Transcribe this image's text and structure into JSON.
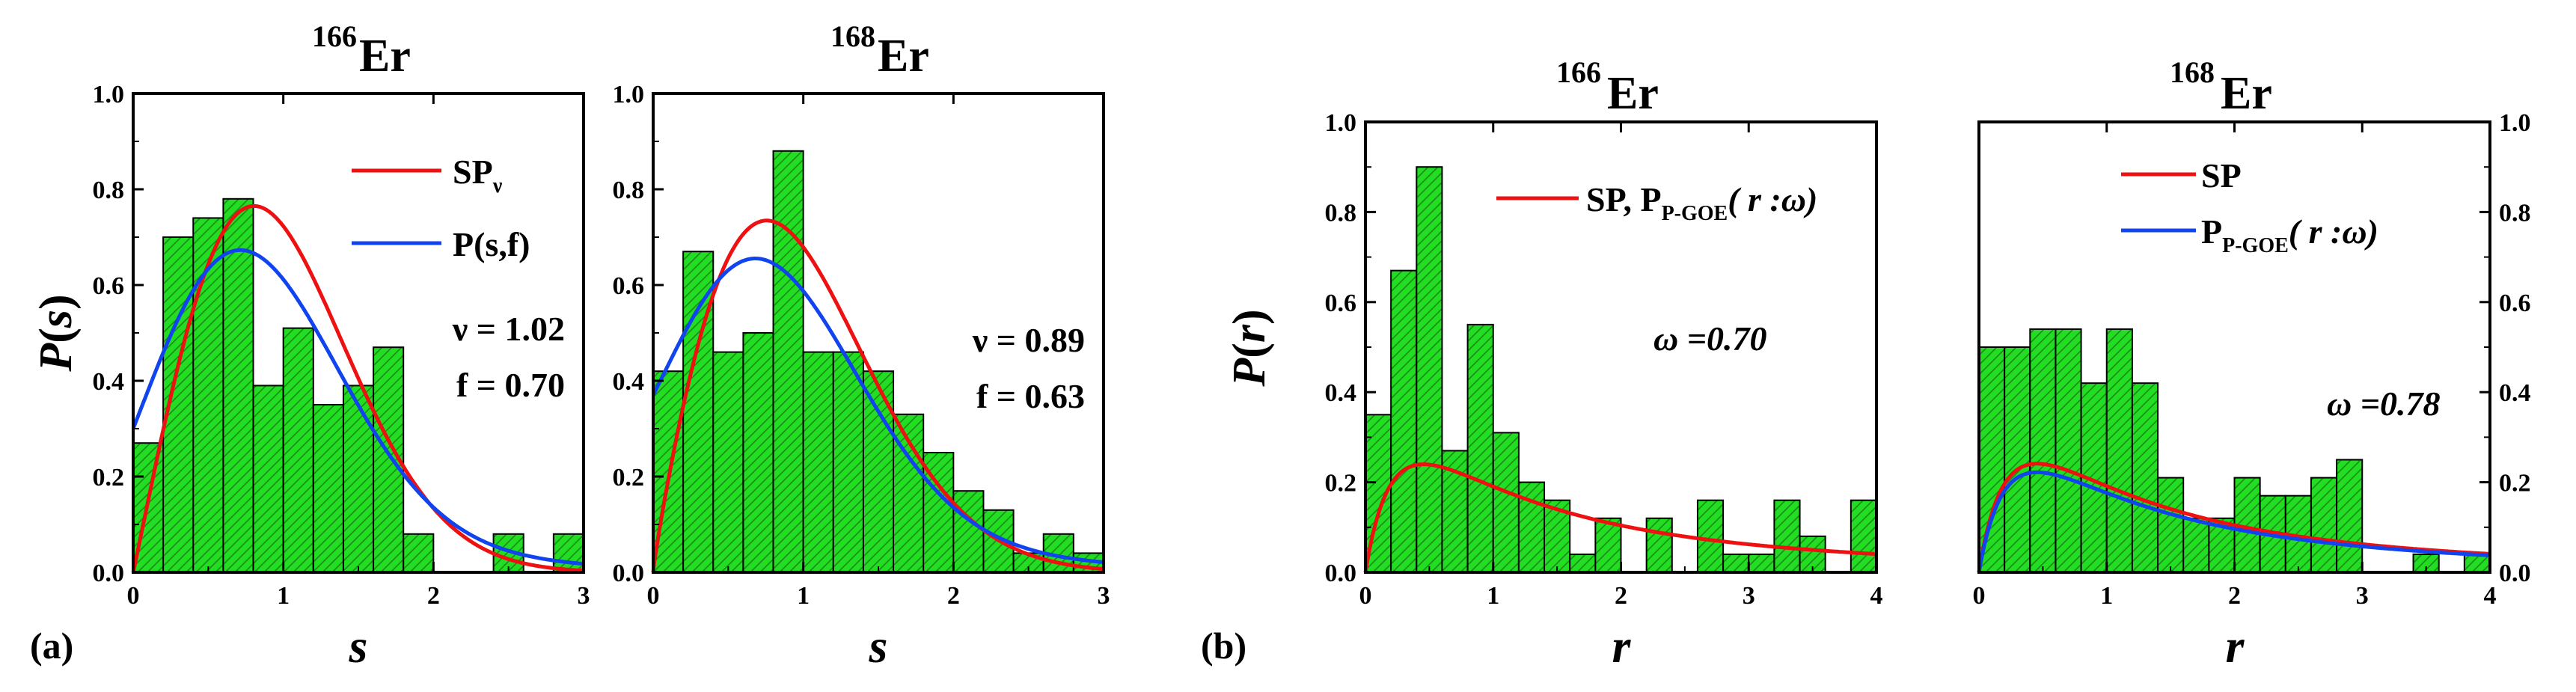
{
  "colors": {
    "hist_fill": "#22dd22",
    "hatch": "#1b8a1b",
    "red": "#ee1111",
    "blue": "#1144ee"
  },
  "panel_labels": [
    "(a)",
    "(b)"
  ],
  "chart_data": [
    {
      "type": "bar",
      "title_sup": "166",
      "title": "Er",
      "xlabel": "s",
      "ylabel": "P(s)",
      "xlim": [
        0,
        3
      ],
      "ylim": [
        0,
        1.0
      ],
      "xticks": [
        "0",
        "1",
        "2",
        "3"
      ],
      "yticks": [
        "0.0",
        "0.2",
        "0.4",
        "0.6",
        "0.8",
        "1.0"
      ],
      "bin_width": 0.2,
      "values": [
        0.27,
        0.7,
        0.74,
        0.78,
        0.39,
        0.51,
        0.35,
        0.39,
        0.47,
        0.08,
        0,
        0,
        0.08,
        0,
        0.08
      ],
      "legend": [
        {
          "label": "SP",
          "sub": "ν",
          "color": "#ee1111"
        },
        {
          "label": "P(s,f)",
          "color": "#1144ee"
        }
      ],
      "annotations": [
        "ν = 1.02",
        "f = 0.70"
      ],
      "series": [
        {
          "name": "SP_v",
          "color": "#ee1111",
          "kind": "brody",
          "nu": 1.02
        },
        {
          "name": "P(s,f)",
          "color": "#1144ee",
          "kind": "blend",
          "f": 0.7
        }
      ]
    },
    {
      "type": "bar",
      "title_sup": "168",
      "title": "Er",
      "xlabel": "s",
      "xlim": [
        0,
        3
      ],
      "ylim": [
        0,
        1.0
      ],
      "xticks": [
        "0",
        "1",
        "2",
        "3"
      ],
      "yticks": [
        "0.0",
        "0.2",
        "0.4",
        "0.6",
        "0.8",
        "1.0"
      ],
      "bin_width": 0.2,
      "values": [
        0.42,
        0.67,
        0.46,
        0.5,
        0.88,
        0.46,
        0.46,
        0.42,
        0.33,
        0.25,
        0.17,
        0.13,
        0.04,
        0.08,
        0.04
      ],
      "annotations": [
        "ν = 0.89",
        "f = 0.63"
      ],
      "series": [
        {
          "name": "SP_v",
          "color": "#ee1111",
          "kind": "brody",
          "nu": 0.89
        },
        {
          "name": "P(s,f)",
          "color": "#1144ee",
          "kind": "blend",
          "f": 0.63
        }
      ]
    },
    {
      "type": "bar",
      "title_sup": "166",
      "title": "Er",
      "xlabel": "r",
      "ylabel": "P(r)",
      "xlim": [
        0,
        4
      ],
      "ylim": [
        0,
        1.0
      ],
      "xticks": [
        "0",
        "1",
        "2",
        "3",
        "4"
      ],
      "yticks": [
        "0.0",
        "0.2",
        "0.4",
        "0.6",
        "0.8",
        "1.0"
      ],
      "bin_width": 0.2,
      "values": [
        0.35,
        0.67,
        0.9,
        0.27,
        0.55,
        0.31,
        0.2,
        0.16,
        0.04,
        0.12,
        0,
        0.12,
        0,
        0.16,
        0.04,
        0.04,
        0.16,
        0.08,
        0,
        0.16
      ],
      "legend": [
        {
          "label": "SP, P",
          "sub": "P-GOE",
          "suffix": "( r :ω)",
          "color": "#ee1111"
        }
      ],
      "annotations": [
        "ω =0.70"
      ],
      "series": [
        {
          "name": "SP, P_P-GOE",
          "color": "#ee1111",
          "kind": "ratio",
          "amp": 1.75,
          "b": 1.2
        }
      ]
    },
    {
      "type": "bar",
      "title_sup": "168",
      "title": "Er",
      "xlabel": "r",
      "xlim": [
        0,
        4
      ],
      "ylim": [
        0,
        1.0
      ],
      "xticks": [
        "0",
        "1",
        "2",
        "3",
        "4"
      ],
      "yticks": [
        "0.0",
        "0.2",
        "0.4",
        "0.6",
        "0.8",
        "1.0"
      ],
      "y_axis_side": "right",
      "bin_width": 0.2,
      "values": [
        0.5,
        0.5,
        0.54,
        0.54,
        0.42,
        0.54,
        0.42,
        0.21,
        0.12,
        0.12,
        0.21,
        0.17,
        0.17,
        0.21,
        0.25,
        0,
        0,
        0.04,
        0,
        0.04
      ],
      "legend": [
        {
          "label": "SP",
          "color": "#ee1111"
        },
        {
          "label": "P",
          "sub": "P-GOE",
          "suffix": "( r :ω)",
          "color": "#1144ee"
        }
      ],
      "annotations": [
        "ω =0.78"
      ],
      "series": [
        {
          "name": "SP",
          "color": "#ee1111",
          "kind": "ratio",
          "amp": 1.76,
          "b": 1.2
        },
        {
          "name": "P_P-GOE",
          "color": "#1144ee",
          "kind": "ratio",
          "amp": 1.62,
          "b": 1.2
        }
      ]
    }
  ]
}
